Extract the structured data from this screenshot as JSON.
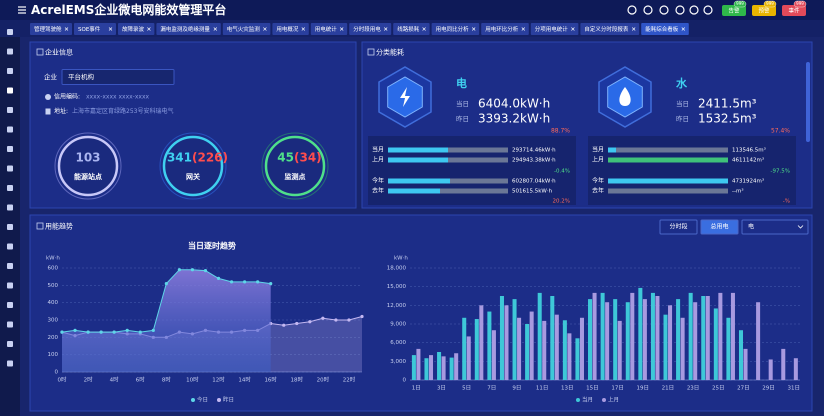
{
  "header": {
    "title": "AcrelEMS企业微电网能效管理平台",
    "badges": [
      {
        "count": "999",
        "label": "告警"
      },
      {
        "count": "999",
        "label": "预警"
      },
      {
        "count": "999",
        "label": "事件"
      }
    ]
  },
  "tabs": [
    "管理驾驶舱",
    "SOE事件",
    "故障录波",
    "漏电监测及绝缘测量",
    "电气火灾监测",
    "用电概况",
    "用电统计",
    "分时段用电",
    "线路损耗",
    "用电同比分析",
    "用电环比分析",
    "分项用电统计",
    "自定义分时段报表",
    "能耗综合看板"
  ],
  "company": {
    "title": "企业信息",
    "field_label": "企业",
    "field_value": "平台机构",
    "credit_label": "信用编码:",
    "credit_value": "xxxx-xxxx xxxx-xxxx",
    "address_label": "地址:",
    "address_value": "上海市嘉定区育绿路253号安科瑞电气",
    "stats": [
      {
        "value": 103,
        "label": "能源站点"
      },
      {
        "value": 341,
        "sub": "(226)",
        "label": "网关"
      },
      {
        "value": 45,
        "sub": "(34)",
        "label": "监测点"
      }
    ]
  },
  "energy": {
    "title": "分类能耗",
    "items": [
      {
        "name": "电",
        "today_label": "当日",
        "today": "6404.0kW·h",
        "yesterday_label": "昨日",
        "yesterday": "3393.2kW·h",
        "day_change": "88.7%",
        "rows": [
          {
            "label": "当月",
            "value": "293714.46kW·h"
          },
          {
            "label": "上月",
            "value": "294943.38kW·h"
          },
          {
            "label": "今年",
            "value": "602807.04kW·h"
          },
          {
            "label": "去年",
            "value": "501615.5kW·h"
          }
        ],
        "month_change": "-0.4%",
        "year_change": "20.2%"
      },
      {
        "name": "水",
        "today_label": "当日",
        "today": "2411.5m³",
        "yesterday_label": "昨日",
        "yesterday": "1532.5m³",
        "day_change": "57.4%",
        "rows": [
          {
            "label": "当月",
            "value": "113546.5m³"
          },
          {
            "label": "上月",
            "value": "4611142m³"
          },
          {
            "label": "今年",
            "value": "4731924m³"
          },
          {
            "label": "去年",
            "value": "--m³"
          }
        ],
        "month_change": "-97.5%",
        "year_change": "-%"
      }
    ]
  },
  "trend": {
    "title": "用能趋势",
    "buttons": [
      "分时段",
      "总用电"
    ],
    "select": "电"
  },
  "chart_data": [
    {
      "type": "line",
      "title": "当日逐时趋势",
      "y_label": "kW·h",
      "categories": [
        "0时",
        null,
        "2时",
        null,
        "4时",
        null,
        "6时",
        null,
        "8时",
        null,
        "10时",
        null,
        "12时",
        null,
        "14时",
        null,
        "16时",
        null,
        "18时",
        null,
        "20时",
        null,
        "22时",
        null
      ],
      "ylim": [
        0,
        600
      ],
      "yticks": [
        0,
        100,
        200,
        300,
        400,
        500,
        600
      ],
      "grid": true,
      "legend": "bottom",
      "series": [
        {
          "name": "今日",
          "color": "#5ed6e8",
          "values": [
            230,
            240,
            230,
            230,
            230,
            240,
            230,
            240,
            510,
            590,
            590,
            585,
            540,
            520,
            520,
            520,
            510,
            null,
            null,
            null,
            null,
            null,
            null,
            null
          ]
        },
        {
          "name": "昨日",
          "color": "#c4b8f2",
          "values": [
            230,
            210,
            230,
            230,
            230,
            220,
            220,
            200,
            200,
            230,
            220,
            240,
            230,
            230,
            240,
            240,
            280,
            270,
            280,
            290,
            310,
            300,
            300,
            320
          ]
        }
      ]
    },
    {
      "type": "bar",
      "y_label": "kW·h",
      "categories": [
        "1日",
        null,
        "3日",
        null,
        "5日",
        null,
        "7日",
        null,
        "9日",
        null,
        "11日",
        null,
        "13日",
        null,
        "15日",
        null,
        "17日",
        null,
        "19日",
        null,
        "21日",
        null,
        "23日",
        null,
        "25日",
        null,
        "27日",
        null,
        "29日",
        null,
        "31日"
      ],
      "ylim": [
        0,
        18000
      ],
      "yticks": [
        0,
        {
          "value": 3000,
          "label": "3,000"
        },
        {
          "value": 6000,
          "label": "6,000"
        },
        {
          "value": 9000,
          "label": "9,000"
        },
        {
          "value": 12000,
          "label": "12,000"
        },
        {
          "value": 15000,
          "label": "15,000"
        },
        {
          "value": 18000,
          "label": "18,000"
        }
      ],
      "grid": true,
      "legend": "bottom",
      "series": [
        {
          "name": "当月",
          "color": "#3ec8d8",
          "values": [
            4000,
            3500,
            4500,
            3600,
            10000,
            9800,
            11000,
            13500,
            13000,
            9000,
            14000,
            13500,
            9600,
            6700,
            13000,
            14000,
            13000,
            12500,
            14800,
            14000,
            10500,
            13000,
            14000,
            13500,
            11500,
            10000,
            8000,
            null,
            null,
            null,
            null
          ]
        },
        {
          "name": "上月",
          "color": "#a89ae0",
          "values": [
            5000,
            4000,
            3800,
            4300,
            7000,
            12000,
            8000,
            12000,
            10000,
            11000,
            9500,
            10500,
            7500,
            10000,
            14000,
            12500,
            9500,
            14000,
            13000,
            13500,
            12000,
            10000,
            12500,
            13500,
            14000,
            14000,
            5000,
            12500,
            3300,
            5000,
            3500
          ]
        }
      ]
    }
  ]
}
